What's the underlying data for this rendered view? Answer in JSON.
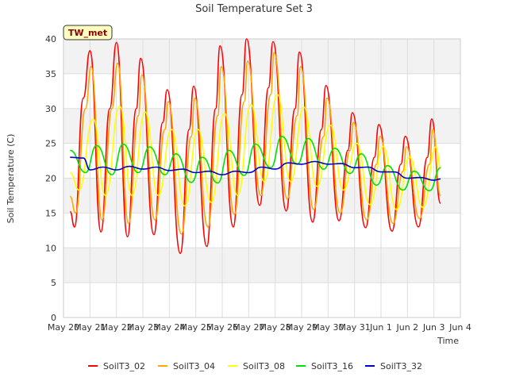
{
  "chart_data": {
    "type": "line",
    "title": "Soil Temperature Set 3",
    "xlabel": "Time",
    "ylabel": "Soil Temperature (C)",
    "site_label": "TW_met",
    "ylim": [
      0,
      40
    ],
    "yticks": [
      0,
      5,
      10,
      15,
      20,
      25,
      30,
      35,
      40
    ],
    "xlim": [
      "2021-05-20",
      "2021-06-04"
    ],
    "xticks": [
      {
        "date": "2021-05-20",
        "label": "May 20"
      },
      {
        "date": "2021-05-21",
        "label": "May 21"
      },
      {
        "date": "2021-05-22",
        "label": "May 22"
      },
      {
        "date": "2021-05-23",
        "label": "May 23"
      },
      {
        "date": "2021-05-24",
        "label": "May 24"
      },
      {
        "date": "2021-05-25",
        "label": "May 25"
      },
      {
        "date": "2021-05-26",
        "label": "May 26"
      },
      {
        "date": "2021-05-27",
        "label": "May 27"
      },
      {
        "date": "2021-05-28",
        "label": "May 28"
      },
      {
        "date": "2021-05-29",
        "label": "May 29"
      },
      {
        "date": "2021-05-30",
        "label": "May 30"
      },
      {
        "date": "2021-05-31",
        "label": "May 31"
      },
      {
        "date": "2021-06-01",
        "label": "Jun 1"
      },
      {
        "date": "2021-06-02",
        "label": "Jun 2"
      },
      {
        "date": "2021-06-03",
        "label": "Jun 3"
      },
      {
        "date": "2021-06-04",
        "label": "Jun 4"
      }
    ],
    "grid": true,
    "legend_position": "bottom",
    "background_bands": true,
    "series": [
      {
        "name": "SoilT3_02",
        "color": "#ff0000",
        "points": [
          [
            "2021-05-20 06:00",
            15.2
          ],
          [
            "2021-05-20 10:00",
            13.0
          ],
          [
            "2021-05-20 18:00",
            31.5
          ],
          [
            "2021-05-21 00:00",
            38.3
          ],
          [
            "2021-05-21 10:00",
            12.3
          ],
          [
            "2021-05-21 18:00",
            30.0
          ],
          [
            "2021-05-22 00:00",
            39.5
          ],
          [
            "2021-05-22 10:00",
            11.6
          ],
          [
            "2021-05-22 18:00",
            30.0
          ],
          [
            "2021-05-22 22:00",
            37.2
          ],
          [
            "2021-05-23 10:00",
            11.9
          ],
          [
            "2021-05-23 18:00",
            28.0
          ],
          [
            "2021-05-23 22:00",
            32.7
          ],
          [
            "2021-05-24 10:00",
            9.2
          ],
          [
            "2021-05-24 18:00",
            27.0
          ],
          [
            "2021-05-24 22:00",
            33.2
          ],
          [
            "2021-05-25 10:00",
            10.2
          ],
          [
            "2021-05-25 18:00",
            30.0
          ],
          [
            "2021-05-25 22:00",
            39.0
          ],
          [
            "2021-05-26 10:00",
            13.0
          ],
          [
            "2021-05-26 18:00",
            32.0
          ],
          [
            "2021-05-26 22:00",
            40.0
          ],
          [
            "2021-05-27 10:00",
            16.1
          ],
          [
            "2021-05-27 18:00",
            33.0
          ],
          [
            "2021-05-27 22:00",
            39.6
          ],
          [
            "2021-05-28 10:00",
            15.3
          ],
          [
            "2021-05-28 18:00",
            30.0
          ],
          [
            "2021-05-28 22:00",
            38.1
          ],
          [
            "2021-05-29 10:00",
            13.7
          ],
          [
            "2021-05-29 18:00",
            27.0
          ],
          [
            "2021-05-29 22:00",
            33.3
          ],
          [
            "2021-05-30 10:00",
            13.9
          ],
          [
            "2021-05-30 18:00",
            24.0
          ],
          [
            "2021-05-30 22:00",
            29.4
          ],
          [
            "2021-05-31 10:00",
            12.9
          ],
          [
            "2021-05-31 18:00",
            23.0
          ],
          [
            "2021-05-31 22:00",
            27.7
          ],
          [
            "2021-06-01 10:00",
            12.4
          ],
          [
            "2021-06-01 18:00",
            22.0
          ],
          [
            "2021-06-01 22:00",
            26.0
          ],
          [
            "2021-06-02 10:00",
            13.0
          ],
          [
            "2021-06-02 18:00",
            23.0
          ],
          [
            "2021-06-02 22:00",
            28.5
          ],
          [
            "2021-06-03 06:00",
            16.4
          ]
        ]
      },
      {
        "name": "SoilT3_04",
        "color": "#ffa500",
        "points": [
          [
            "2021-05-20 06:00",
            17.4
          ],
          [
            "2021-05-20 11:00",
            15.0
          ],
          [
            "2021-05-20 20:00",
            30.0
          ],
          [
            "2021-05-21 01:00",
            36.0
          ],
          [
            "2021-05-21 11:00",
            14.0
          ],
          [
            "2021-05-21 20:00",
            30.0
          ],
          [
            "2021-05-22 01:00",
            36.5
          ],
          [
            "2021-05-22 11:00",
            13.5
          ],
          [
            "2021-05-22 20:00",
            29.0
          ],
          [
            "2021-05-22 23:00",
            34.8
          ],
          [
            "2021-05-23 11:00",
            14.0
          ],
          [
            "2021-05-23 20:00",
            27.0
          ],
          [
            "2021-05-23 23:00",
            31.0
          ],
          [
            "2021-05-24 11:00",
            12.0
          ],
          [
            "2021-05-24 20:00",
            26.0
          ],
          [
            "2021-05-24 23:00",
            31.5
          ],
          [
            "2021-05-25 11:00",
            13.0
          ],
          [
            "2021-05-25 20:00",
            29.0
          ],
          [
            "2021-05-25 23:00",
            36.0
          ],
          [
            "2021-05-26 11:00",
            14.8
          ],
          [
            "2021-05-26 20:00",
            31.0
          ],
          [
            "2021-05-26 23:00",
            36.8
          ],
          [
            "2021-05-27 11:00",
            17.5
          ],
          [
            "2021-05-27 20:00",
            32.0
          ],
          [
            "2021-05-27 23:00",
            38.0
          ],
          [
            "2021-05-28 11:00",
            17.0
          ],
          [
            "2021-05-28 20:00",
            29.0
          ],
          [
            "2021-05-28 23:00",
            36.0
          ],
          [
            "2021-05-29 11:00",
            15.5
          ],
          [
            "2021-05-29 20:00",
            26.0
          ],
          [
            "2021-05-29 23:00",
            31.5
          ],
          [
            "2021-05-30 11:00",
            15.0
          ],
          [
            "2021-05-30 20:00",
            24.0
          ],
          [
            "2021-05-30 23:00",
            28.0
          ],
          [
            "2021-05-31 11:00",
            14.0
          ],
          [
            "2021-05-31 20:00",
            22.0
          ],
          [
            "2021-05-31 23:00",
            26.0
          ],
          [
            "2021-06-01 11:00",
            13.5
          ],
          [
            "2021-06-01 20:00",
            21.0
          ],
          [
            "2021-06-01 23:00",
            24.5
          ],
          [
            "2021-06-02 11:00",
            14.2
          ],
          [
            "2021-06-02 20:00",
            22.0
          ],
          [
            "2021-06-02 23:00",
            27.0
          ],
          [
            "2021-06-03 06:00",
            17.5
          ]
        ]
      },
      {
        "name": "SoilT3_08",
        "color": "#ffff00",
        "points": [
          [
            "2021-05-20 06:00",
            20.8
          ],
          [
            "2021-05-20 14:00",
            18.3
          ],
          [
            "2021-05-21 03:00",
            28.5
          ],
          [
            "2021-05-21 14:00",
            17.5
          ],
          [
            "2021-05-22 03:00",
            30.3
          ],
          [
            "2021-05-22 14:00",
            17.5
          ],
          [
            "2021-05-23 02:00",
            29.5
          ],
          [
            "2021-05-23 14:00",
            17.5
          ],
          [
            "2021-05-24 02:00",
            27.0
          ],
          [
            "2021-05-24 14:00",
            16.0
          ],
          [
            "2021-05-25 02:00",
            27.0
          ],
          [
            "2021-05-25 14:00",
            16.5
          ],
          [
            "2021-05-26 02:00",
            29.3
          ],
          [
            "2021-05-26 14:00",
            17.5
          ],
          [
            "2021-05-27 02:00",
            30.6
          ],
          [
            "2021-05-27 14:00",
            19.5
          ],
          [
            "2021-05-28 02:00",
            32.0
          ],
          [
            "2021-05-28 14:00",
            19.5
          ],
          [
            "2021-05-29 02:00",
            30.2
          ],
          [
            "2021-05-29 14:00",
            18.8
          ],
          [
            "2021-05-30 02:00",
            27.6
          ],
          [
            "2021-05-30 14:00",
            18.3
          ],
          [
            "2021-05-31 02:00",
            25.0
          ],
          [
            "2021-05-31 14:00",
            16.2
          ],
          [
            "2021-06-01 02:00",
            24.5
          ],
          [
            "2021-06-01 14:00",
            15.5
          ],
          [
            "2021-06-02 02:00",
            23.0
          ],
          [
            "2021-06-02 14:00",
            15.8
          ],
          [
            "2021-06-03 02:00",
            24.5
          ],
          [
            "2021-06-03 06:00",
            21.5
          ]
        ]
      },
      {
        "name": "SoilT3_16",
        "color": "#00e000",
        "points": [
          [
            "2021-05-20 06:00",
            24.0
          ],
          [
            "2021-05-20 20:00",
            20.8
          ],
          [
            "2021-05-21 06:00",
            24.7
          ],
          [
            "2021-05-21 20:00",
            20.5
          ],
          [
            "2021-05-22 06:00",
            24.9
          ],
          [
            "2021-05-22 20:00",
            20.8
          ],
          [
            "2021-05-23 06:00",
            24.5
          ],
          [
            "2021-05-23 20:00",
            20.5
          ],
          [
            "2021-05-24 06:00",
            23.5
          ],
          [
            "2021-05-24 20:00",
            19.4
          ],
          [
            "2021-05-25 06:00",
            23.0
          ],
          [
            "2021-05-25 20:00",
            19.3
          ],
          [
            "2021-05-26 06:00",
            24.0
          ],
          [
            "2021-05-26 20:00",
            20.4
          ],
          [
            "2021-05-27 06:00",
            24.9
          ],
          [
            "2021-05-27 20:00",
            21.5
          ],
          [
            "2021-05-28 06:00",
            26.0
          ],
          [
            "2021-05-28 20:00",
            22.0
          ],
          [
            "2021-05-29 06:00",
            25.7
          ],
          [
            "2021-05-29 20:00",
            21.3
          ],
          [
            "2021-05-30 06:00",
            24.3
          ],
          [
            "2021-05-30 20:00",
            20.7
          ],
          [
            "2021-05-31 06:00",
            23.5
          ],
          [
            "2021-05-31 20:00",
            19.0
          ],
          [
            "2021-06-01 06:00",
            21.8
          ],
          [
            "2021-06-01 20:00",
            18.3
          ],
          [
            "2021-06-02 06:00",
            21.0
          ],
          [
            "2021-06-02 20:00",
            18.2
          ],
          [
            "2021-06-03 06:00",
            21.5
          ]
        ]
      },
      {
        "name": "SoilT3_32",
        "color": "#0000cc",
        "points": [
          [
            "2021-05-20 06:00",
            23.0
          ],
          [
            "2021-05-20 18:00",
            22.9
          ],
          [
            "2021-05-21 00:00",
            21.2
          ],
          [
            "2021-05-21 12:00",
            21.6
          ],
          [
            "2021-05-22 00:00",
            21.2
          ],
          [
            "2021-05-22 12:00",
            21.7
          ],
          [
            "2021-05-23 00:00",
            21.3
          ],
          [
            "2021-05-23 12:00",
            21.6
          ],
          [
            "2021-05-24 00:00",
            21.1
          ],
          [
            "2021-05-24 12:00",
            21.3
          ],
          [
            "2021-05-25 00:00",
            20.8
          ],
          [
            "2021-05-25 12:00",
            21.0
          ],
          [
            "2021-05-26 00:00",
            20.5
          ],
          [
            "2021-05-26 12:00",
            21.0
          ],
          [
            "2021-05-27 00:00",
            20.8
          ],
          [
            "2021-05-27 12:00",
            21.6
          ],
          [
            "2021-05-28 00:00",
            21.3
          ],
          [
            "2021-05-28 12:00",
            22.2
          ],
          [
            "2021-05-29 00:00",
            22.0
          ],
          [
            "2021-05-29 12:00",
            22.4
          ],
          [
            "2021-05-30 00:00",
            22.0
          ],
          [
            "2021-05-30 12:00",
            22.1
          ],
          [
            "2021-05-31 00:00",
            21.5
          ],
          [
            "2021-05-31 12:00",
            21.6
          ],
          [
            "2021-06-01 00:00",
            20.9
          ],
          [
            "2021-06-01 12:00",
            20.9
          ],
          [
            "2021-06-02 00:00",
            20.0
          ],
          [
            "2021-06-02 12:00",
            20.1
          ],
          [
            "2021-06-03 00:00",
            19.7
          ],
          [
            "2021-06-03 06:00",
            19.9
          ]
        ]
      }
    ]
  }
}
